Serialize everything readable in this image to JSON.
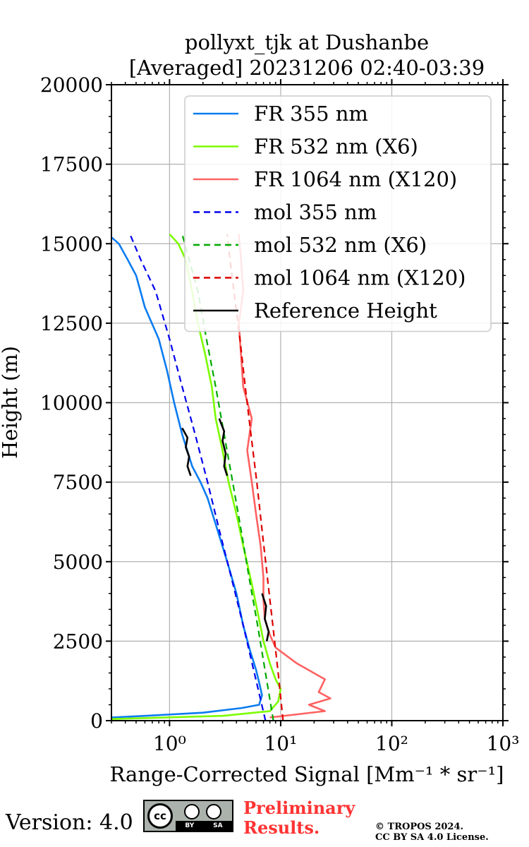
{
  "colors": {
    "fr355": "#0a7cf0",
    "fr532": "#7dfc00",
    "fr1064": "#ff6262",
    "mol355": "#0000ee",
    "mol532": "#00aa00",
    "mol1064": "#dd0000",
    "ref": "#000000",
    "grid": "#b0b0b0"
  },
  "chart_data": {
    "type": "line",
    "title_line1": "pollyxt_tjk at Dushanbe",
    "title_line2": "[Averaged] 20231206 02:40-03:39",
    "xlabel": "Range-Corrected Signal [Mm⁻¹ * sr⁻¹]",
    "ylabel": "Height (m)",
    "xscale": "log",
    "xlim": [
      0.3,
      1000
    ],
    "ylim": [
      0,
      20000
    ],
    "grid": true,
    "legend_position": "top-right",
    "yticks": [
      0,
      2500,
      5000,
      7500,
      10000,
      12500,
      15000,
      17500,
      20000
    ],
    "ytick_labels": [
      "0",
      "2500",
      "5000",
      "7500",
      "10000",
      "12500",
      "15000",
      "17500",
      "20000"
    ],
    "xticks": [
      1,
      10,
      100,
      1000
    ],
    "xtick_labels": [
      "10⁰",
      "10¹",
      "10²",
      "10³"
    ],
    "series": [
      {
        "name": "FR 355 nm",
        "style": "solid",
        "color_key": "fr355",
        "points": [
          [
            0.3,
            100
          ],
          [
            0.6,
            150
          ],
          [
            2,
            250
          ],
          [
            4.5,
            400
          ],
          [
            6.4,
            500
          ],
          [
            6.8,
            800
          ],
          [
            6.4,
            1200
          ],
          [
            6,
            1600
          ],
          [
            5.3,
            2200
          ],
          [
            4.6,
            3000
          ],
          [
            4,
            4000
          ],
          [
            3.3,
            5000
          ],
          [
            2.7,
            6000
          ],
          [
            2.2,
            7000
          ],
          [
            1.9,
            7500
          ],
          [
            1.6,
            8000
          ],
          [
            1.3,
            9000
          ],
          [
            1.1,
            10000
          ],
          [
            0.95,
            11000
          ],
          [
            0.8,
            12000
          ],
          [
            0.6,
            13000
          ],
          [
            0.5,
            14000
          ],
          [
            0.42,
            14500
          ],
          [
            0.35,
            15000
          ],
          [
            0.3,
            15200
          ]
        ]
      },
      {
        "name": "FR 532 nm (X6)",
        "style": "solid",
        "color_key": "fr532",
        "points": [
          [
            0.3,
            50
          ],
          [
            3,
            150
          ],
          [
            8,
            300
          ],
          [
            9.5,
            600
          ],
          [
            10,
            1000
          ],
          [
            9,
            1300
          ],
          [
            8,
            1800
          ],
          [
            7,
            2500
          ],
          [
            6.3,
            3300
          ],
          [
            5.5,
            4300
          ],
          [
            4.6,
            5500
          ],
          [
            4,
            6500
          ],
          [
            3.4,
            7500
          ],
          [
            3,
            8500
          ],
          [
            2.6,
            9500
          ],
          [
            2.4,
            10500
          ],
          [
            2.1,
            11500
          ],
          [
            1.8,
            12500
          ],
          [
            1.6,
            13500
          ],
          [
            1.4,
            14500
          ],
          [
            1.2,
            15000
          ],
          [
            1.0,
            15300
          ]
        ]
      },
      {
        "name": "FR 1064 nm (X120)",
        "style": "solid",
        "color_key": "fr1064",
        "points": [
          [
            8,
            100
          ],
          [
            25,
            300
          ],
          [
            18,
            500
          ],
          [
            28,
            700
          ],
          [
            22,
            900
          ],
          [
            25,
            1300
          ],
          [
            14,
            1800
          ],
          [
            9,
            2300
          ],
          [
            8,
            2700
          ],
          [
            7.2,
            3200
          ],
          [
            7,
            3800
          ],
          [
            7,
            4500
          ],
          [
            6.6,
            5500
          ],
          [
            6,
            6500
          ],
          [
            5.5,
            7500
          ],
          [
            5,
            8500
          ],
          [
            5.5,
            9500
          ],
          [
            4.6,
            10500
          ],
          [
            4.4,
            11500
          ],
          [
            4.2,
            12500
          ],
          [
            4.6,
            13500
          ],
          [
            4.4,
            14500
          ],
          [
            4.2,
            15300
          ]
        ]
      },
      {
        "name": "mol 355 nm",
        "style": "dashed",
        "color_key": "mol355",
        "points": [
          [
            7.3,
            0
          ],
          [
            5.8,
            1500
          ],
          [
            4.6,
            3000
          ],
          [
            3.6,
            4500
          ],
          [
            2.8,
            6000
          ],
          [
            2.2,
            7500
          ],
          [
            1.7,
            9000
          ],
          [
            1.3,
            10500
          ],
          [
            1.0,
            12000
          ],
          [
            0.75,
            13500
          ],
          [
            0.55,
            14500
          ],
          [
            0.44,
            15300
          ]
        ]
      },
      {
        "name": "mol 532 nm (X6)",
        "style": "dashed",
        "color_key": "mol532",
        "points": [
          [
            8.6,
            0
          ],
          [
            7.3,
            1500
          ],
          [
            6.2,
            3000
          ],
          [
            5.2,
            4500
          ],
          [
            4.4,
            6000
          ],
          [
            3.7,
            7500
          ],
          [
            3.1,
            9000
          ],
          [
            2.6,
            10500
          ],
          [
            2.15,
            12000
          ],
          [
            1.8,
            13500
          ],
          [
            1.5,
            14500
          ],
          [
            1.3,
            15300
          ]
        ]
      },
      {
        "name": "mol 1064 nm (X120)",
        "style": "dashed",
        "color_key": "mol1064",
        "points": [
          [
            10.5,
            0
          ],
          [
            9.5,
            1500
          ],
          [
            8.5,
            3000
          ],
          [
            7.6,
            4500
          ],
          [
            6.8,
            6000
          ],
          [
            6.1,
            7500
          ],
          [
            5.4,
            9000
          ],
          [
            4.8,
            10500
          ],
          [
            4.3,
            12000
          ],
          [
            3.8,
            13500
          ],
          [
            3.5,
            14500
          ],
          [
            3.3,
            15300
          ]
        ]
      },
      {
        "name": "Reference Height",
        "style": "solid",
        "color_key": "ref",
        "segments": [
          [
            [
              1.55,
              7700
            ],
            [
              1.45,
              8000
            ],
            [
              1.5,
              8300
            ],
            [
              1.4,
              8600
            ],
            [
              1.45,
              8900
            ],
            [
              1.3,
              9200
            ]
          ],
          [
            [
              3.3,
              7700
            ],
            [
              3.1,
              8000
            ],
            [
              3.2,
              8400
            ],
            [
              3.0,
              8800
            ],
            [
              3.1,
              9100
            ],
            [
              2.8,
              9500
            ]
          ],
          [
            [
              7.5,
              2500
            ],
            [
              7.8,
              2800
            ],
            [
              7.2,
              3200
            ],
            [
              7.4,
              3600
            ],
            [
              6.8,
              4000
            ]
          ]
        ]
      }
    ]
  },
  "footer": {
    "version": "Version: 4.0",
    "license_badge_cc": "cc",
    "license_badge_by": "BY",
    "license_badge_sa": "SA",
    "preliminary": "Preliminary\nResults.",
    "copyright": "© TROPOS 2024.\nCC BY SA 4.0 License."
  }
}
